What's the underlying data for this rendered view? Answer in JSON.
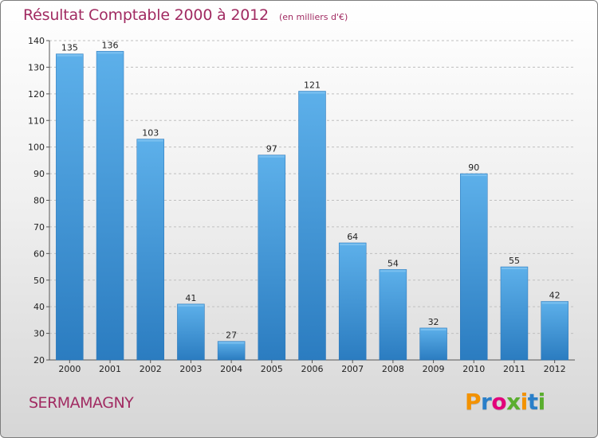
{
  "title": {
    "main": "Résultat Comptable 2000 à 2012",
    "unit": "(en milliers d'€)"
  },
  "commune": "SERMAMAGNY",
  "logo": {
    "text": "Proxiti",
    "letters": [
      "P",
      "r",
      "o",
      "x",
      "i",
      "t",
      "i"
    ],
    "colors": [
      "#f39200",
      "#2a7fc9",
      "#e2007a",
      "#5aae2e",
      "#f39200",
      "#2a7fc9",
      "#5aae2e"
    ]
  },
  "colors": {
    "title": "#a12b62",
    "bar_top": "#5db0ea",
    "bar_bottom": "#2b7cc0",
    "bar_edge": "#2a75b8",
    "axis_text": "#222222",
    "grid": "#bfbfbf"
  },
  "chart_data": {
    "type": "bar",
    "categories": [
      "2000",
      "2001",
      "2002",
      "2003",
      "2004",
      "2005",
      "2006",
      "2007",
      "2008",
      "2009",
      "2010",
      "2011",
      "2012"
    ],
    "values": [
      135,
      136,
      103,
      41,
      27,
      97,
      121,
      64,
      54,
      32,
      90,
      55,
      42
    ],
    "ylim": [
      20,
      140
    ],
    "yticks": [
      20,
      30,
      40,
      50,
      60,
      70,
      80,
      90,
      100,
      110,
      120,
      130,
      140
    ],
    "grid": "horizontal, dashed",
    "legend": "none",
    "xlabel": "",
    "ylabel": ""
  }
}
